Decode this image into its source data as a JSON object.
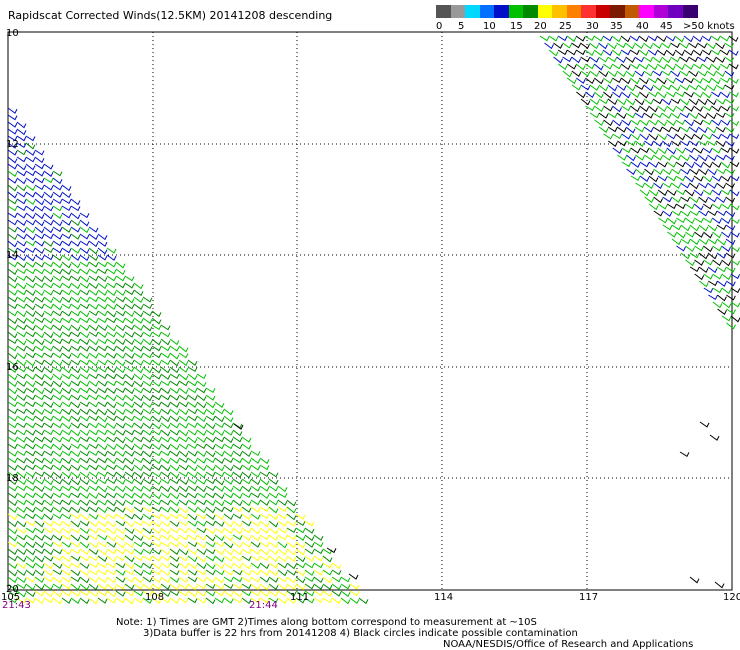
{
  "title": "Rapidscat Corrected Winds(12.5KM) 20141208 descending",
  "legend": {
    "colors": [
      "#555555",
      "#999999",
      "#00d8ff",
      "#0070ff",
      "#0010c8",
      "#00c000",
      "#008a00",
      "#ffff00",
      "#ffc000",
      "#ff8000",
      "#ff3030",
      "#c80000",
      "#7a1a00",
      "#c05a00",
      "#ff00ff",
      "#b000d8",
      "#7000c0",
      "#3a0070"
    ],
    "labels": [
      "0",
      "5",
      "10",
      "15",
      "20",
      "25",
      "30",
      "35",
      "40",
      "45",
      ">50 knots"
    ]
  },
  "axes": {
    "lat_labels": [
      "10",
      "12",
      "14",
      "16",
      "18",
      "20"
    ],
    "lon_labels": [
      "105",
      "108",
      "111",
      "114",
      "117",
      "120"
    ]
  },
  "times": [
    "21:43",
    "21:44"
  ],
  "notes": [
    "Note: 1) Times are GMT 2)Times along bottom correspond to measurement at ~10S",
    "3)Data buffer is 22 hrs from 20141208 4) Black circles indicate possible contamination",
    "NOAA/NESDIS/Office of Research and Applications"
  ]
}
